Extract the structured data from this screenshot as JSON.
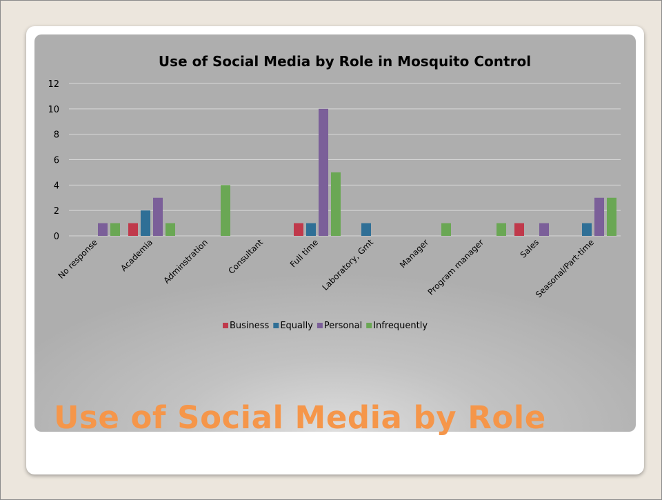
{
  "slide": {
    "title": "Use of Social Media by Role"
  },
  "colors": {
    "Business": "#c0394b",
    "Equally": "#2f6f96",
    "Personal": "#7b5f99",
    "Infrequently": "#6aa754",
    "gridline": "#d8d8d8",
    "slide_title": "#f5964a"
  },
  "chart_data": {
    "type": "bar",
    "title": "Use of Social Media by  Role in Mosquito Control",
    "xlabel": "",
    "ylabel": "",
    "ylim": [
      0,
      12
    ],
    "yticks": [
      0,
      2,
      4,
      6,
      8,
      10,
      12
    ],
    "grid": true,
    "legend_position": "bottom",
    "categories": [
      "No response",
      "Academia",
      "Adminstration",
      "Consultant",
      "Full time",
      "Laboratory, Gmt",
      "Manager",
      "Program manager",
      "Sales",
      "Seasonal/Part-time"
    ],
    "series": [
      {
        "name": "Business",
        "color": "#c0394b",
        "values": [
          0,
          1,
          0,
          0,
          1,
          0,
          0,
          0,
          1,
          0
        ]
      },
      {
        "name": "Equally",
        "color": "#2f6f96",
        "values": [
          0,
          2,
          0,
          0,
          1,
          1,
          0,
          0,
          0,
          1
        ]
      },
      {
        "name": "Personal",
        "color": "#7b5f99",
        "values": [
          1,
          3,
          0,
          0,
          10,
          0,
          0,
          0,
          1,
          3
        ]
      },
      {
        "name": "Infrequently",
        "color": "#6aa754",
        "values": [
          1,
          1,
          4,
          0,
          5,
          0,
          1,
          1,
          0,
          3
        ]
      }
    ]
  }
}
